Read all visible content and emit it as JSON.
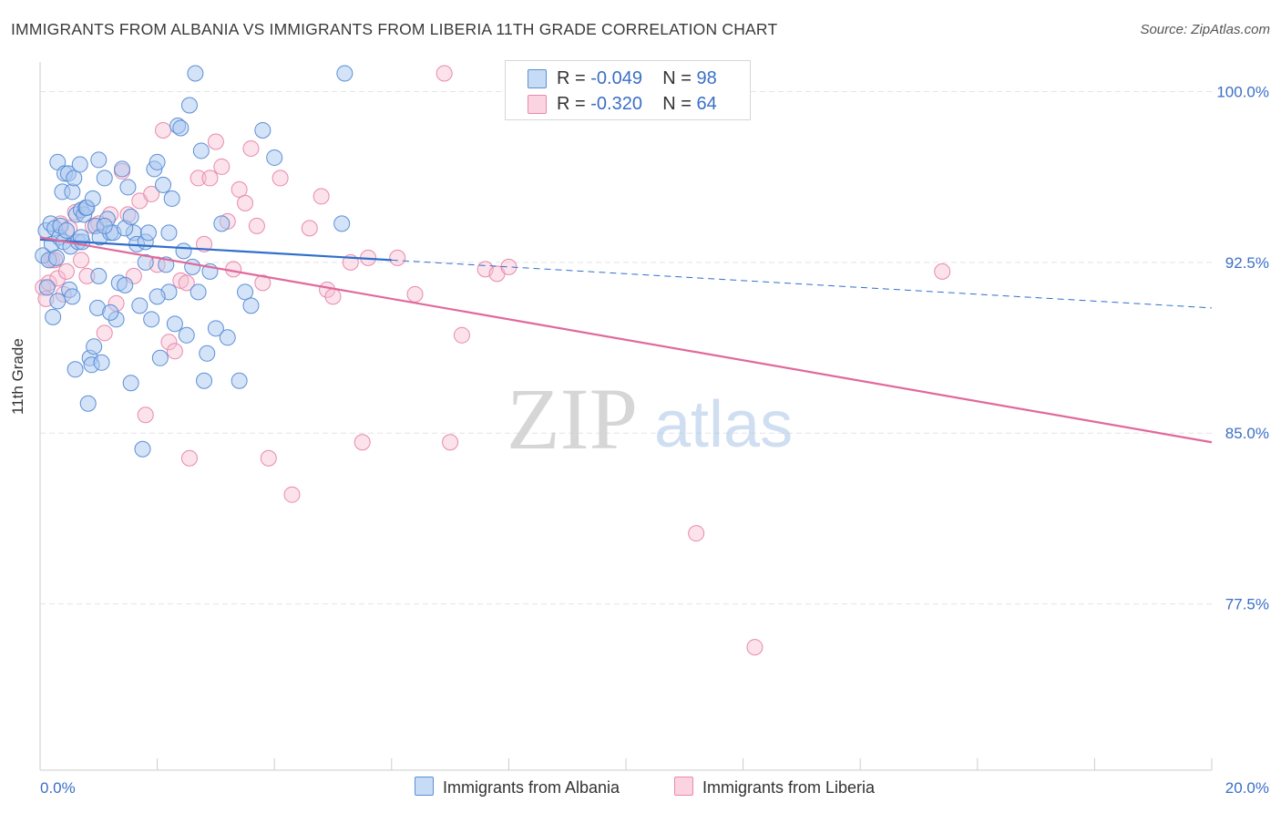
{
  "header": {
    "title": "IMMIGRANTS FROM ALBANIA VS IMMIGRANTS FROM LIBERIA 11TH GRADE CORRELATION CHART",
    "source": "Source: ZipAtlas.com"
  },
  "watermark": {
    "zip": "ZIP",
    "atlas": "atlas"
  },
  "legend": {
    "albania": {
      "r_label": "R =",
      "r_value": "-0.049",
      "n_label": "N =",
      "n_value": "98",
      "name": "Immigrants from Albania"
    },
    "liberia": {
      "r_label": "R =",
      "r_value": "-0.320",
      "n_label": "N =",
      "n_value": "64",
      "name": "Immigrants from Liberia"
    }
  },
  "colors": {
    "albania_fill": "#a9c8f0",
    "albania_stroke": "#5b8fd6",
    "albania_line": "#2f6fcc",
    "liberia_fill": "#f7bfd3",
    "liberia_stroke": "#e88aab",
    "liberia_line": "#e0699a",
    "tick_label": "#3a6fc7"
  },
  "chart_data": {
    "type": "scatter",
    "title": "IMMIGRANTS FROM ALBANIA VS IMMIGRANTS FROM LIBERIA 11TH GRADE CORRELATION CHART",
    "xlabel": "",
    "ylabel": "11th Grade",
    "xlim": [
      0,
      20
    ],
    "ylim": [
      70.2,
      100.9
    ],
    "x_tick_labels": [
      "0.0%",
      "20.0%"
    ],
    "y_ticks": [
      77.5,
      85.0,
      92.5,
      100.0
    ],
    "y_tick_labels": [
      "77.5%",
      "85.0%",
      "92.5%",
      "100.0%"
    ],
    "grid": true,
    "series": [
      {
        "name": "Immigrants from Albania",
        "r": -0.049,
        "n": 98,
        "trend": {
          "x0": 0.0,
          "y0": 93.5,
          "x1": 6.0,
          "y1": 92.6,
          "dashed_to_x": 20.0,
          "dashed_to_y": 90.5
        },
        "points": [
          [
            0.05,
            92.8
          ],
          [
            0.1,
            93.9
          ],
          [
            0.12,
            91.4
          ],
          [
            0.15,
            92.6
          ],
          [
            0.18,
            94.2
          ],
          [
            0.2,
            93.3
          ],
          [
            0.22,
            90.1
          ],
          [
            0.25,
            94.0
          ],
          [
            0.28,
            92.7
          ],
          [
            0.3,
            96.9
          ],
          [
            0.33,
            93.6
          ],
          [
            0.35,
            94.1
          ],
          [
            0.38,
            95.6
          ],
          [
            0.4,
            93.4
          ],
          [
            0.42,
            96.4
          ],
          [
            0.45,
            93.9
          ],
          [
            0.48,
            96.4
          ],
          [
            0.5,
            91.3
          ],
          [
            0.52,
            93.2
          ],
          [
            0.55,
            95.6
          ],
          [
            0.58,
            96.2
          ],
          [
            0.6,
            87.8
          ],
          [
            0.62,
            94.6
          ],
          [
            0.65,
            93.4
          ],
          [
            0.68,
            96.8
          ],
          [
            0.7,
            94.8
          ],
          [
            0.72,
            93.4
          ],
          [
            0.75,
            94.6
          ],
          [
            0.78,
            94.9
          ],
          [
            0.8,
            94.9
          ],
          [
            0.82,
            86.3
          ],
          [
            0.85,
            88.3
          ],
          [
            0.88,
            88.0
          ],
          [
            0.9,
            95.3
          ],
          [
            0.92,
            88.8
          ],
          [
            0.95,
            94.1
          ],
          [
            0.98,
            90.5
          ],
          [
            1.0,
            97.0
          ],
          [
            1.02,
            93.6
          ],
          [
            1.05,
            88.1
          ],
          [
            1.1,
            96.2
          ],
          [
            1.15,
            94.4
          ],
          [
            1.2,
            93.8
          ],
          [
            1.25,
            93.8
          ],
          [
            1.3,
            90.0
          ],
          [
            1.35,
            91.6
          ],
          [
            1.4,
            96.6
          ],
          [
            1.45,
            91.5
          ],
          [
            1.5,
            95.8
          ],
          [
            1.55,
            87.2
          ],
          [
            1.6,
            93.8
          ],
          [
            1.65,
            93.3
          ],
          [
            1.7,
            90.6
          ],
          [
            1.75,
            84.3
          ],
          [
            1.8,
            93.4
          ],
          [
            1.85,
            93.8
          ],
          [
            1.9,
            90.0
          ],
          [
            1.95,
            96.6
          ],
          [
            2.0,
            96.9
          ],
          [
            2.05,
            88.3
          ],
          [
            2.1,
            95.9
          ],
          [
            2.15,
            92.4
          ],
          [
            2.2,
            93.8
          ],
          [
            2.25,
            95.3
          ],
          [
            2.3,
            89.8
          ],
          [
            2.35,
            98.5
          ],
          [
            2.4,
            98.4
          ],
          [
            2.5,
            89.3
          ],
          [
            2.55,
            99.4
          ],
          [
            2.6,
            92.3
          ],
          [
            2.65,
            100.8
          ],
          [
            2.7,
            91.2
          ],
          [
            2.75,
            97.4
          ],
          [
            2.8,
            87.3
          ],
          [
            2.85,
            88.5
          ],
          [
            2.9,
            92.1
          ],
          [
            3.0,
            89.6
          ],
          [
            3.1,
            94.2
          ],
          [
            3.2,
            89.2
          ],
          [
            3.4,
            87.3
          ],
          [
            3.5,
            91.2
          ],
          [
            3.6,
            90.6
          ],
          [
            3.8,
            98.3
          ],
          [
            4.0,
            97.1
          ],
          [
            1.45,
            94.0
          ],
          [
            1.55,
            94.5
          ],
          [
            2.2,
            91.2
          ],
          [
            0.3,
            90.8
          ],
          [
            1.0,
            91.9
          ],
          [
            2.0,
            91.0
          ],
          [
            5.15,
            94.2
          ],
          [
            5.2,
            100.8
          ],
          [
            1.2,
            90.3
          ],
          [
            0.55,
            91.0
          ],
          [
            1.8,
            92.5
          ],
          [
            0.7,
            93.6
          ],
          [
            2.45,
            93.0
          ],
          [
            1.1,
            94.1
          ]
        ]
      },
      {
        "name": "Immigrants from Liberia",
        "r": -0.32,
        "n": 64,
        "trend": {
          "x0": 0.0,
          "y0": 93.6,
          "x1": 20.0,
          "y1": 84.6
        },
        "points": [
          [
            0.05,
            91.4
          ],
          [
            0.1,
            90.9
          ],
          [
            0.15,
            91.6
          ],
          [
            0.2,
            92.6
          ],
          [
            0.25,
            92.6
          ],
          [
            0.3,
            91.8
          ],
          [
            0.35,
            94.2
          ],
          [
            0.4,
            91.1
          ],
          [
            0.45,
            92.1
          ],
          [
            0.5,
            94.0
          ],
          [
            0.6,
            94.7
          ],
          [
            0.7,
            92.6
          ],
          [
            0.8,
            91.9
          ],
          [
            0.9,
            94.1
          ],
          [
            1.0,
            94.2
          ],
          [
            1.1,
            89.4
          ],
          [
            1.2,
            94.6
          ],
          [
            1.3,
            90.7
          ],
          [
            1.4,
            96.5
          ],
          [
            1.5,
            94.6
          ],
          [
            1.6,
            91.9
          ],
          [
            1.7,
            95.2
          ],
          [
            1.8,
            85.8
          ],
          [
            1.9,
            95.5
          ],
          [
            2.0,
            92.4
          ],
          [
            2.1,
            98.3
          ],
          [
            2.2,
            89.0
          ],
          [
            2.3,
            88.6
          ],
          [
            2.4,
            91.7
          ],
          [
            2.5,
            91.6
          ],
          [
            2.55,
            83.9
          ],
          [
            2.7,
            96.2
          ],
          [
            2.8,
            93.3
          ],
          [
            2.9,
            96.2
          ],
          [
            3.0,
            97.8
          ],
          [
            3.1,
            96.7
          ],
          [
            3.2,
            94.3
          ],
          [
            3.3,
            92.2
          ],
          [
            3.4,
            95.7
          ],
          [
            3.5,
            95.1
          ],
          [
            3.6,
            97.5
          ],
          [
            3.7,
            94.1
          ],
          [
            3.8,
            91.6
          ],
          [
            3.9,
            83.9
          ],
          [
            4.1,
            96.2
          ],
          [
            4.3,
            82.3
          ],
          [
            4.6,
            94.0
          ],
          [
            4.8,
            95.4
          ],
          [
            4.9,
            91.3
          ],
          [
            5.0,
            91.0
          ],
          [
            5.3,
            92.5
          ],
          [
            5.5,
            84.6
          ],
          [
            5.6,
            92.7
          ],
          [
            6.1,
            92.7
          ],
          [
            6.4,
            91.1
          ],
          [
            6.9,
            100.8
          ],
          [
            7.0,
            84.6
          ],
          [
            7.2,
            89.3
          ],
          [
            7.6,
            92.2
          ],
          [
            7.8,
            92.0
          ],
          [
            8.0,
            92.3
          ],
          [
            11.2,
            80.6
          ],
          [
            12.2,
            75.6
          ],
          [
            15.4,
            92.1
          ]
        ]
      }
    ]
  }
}
